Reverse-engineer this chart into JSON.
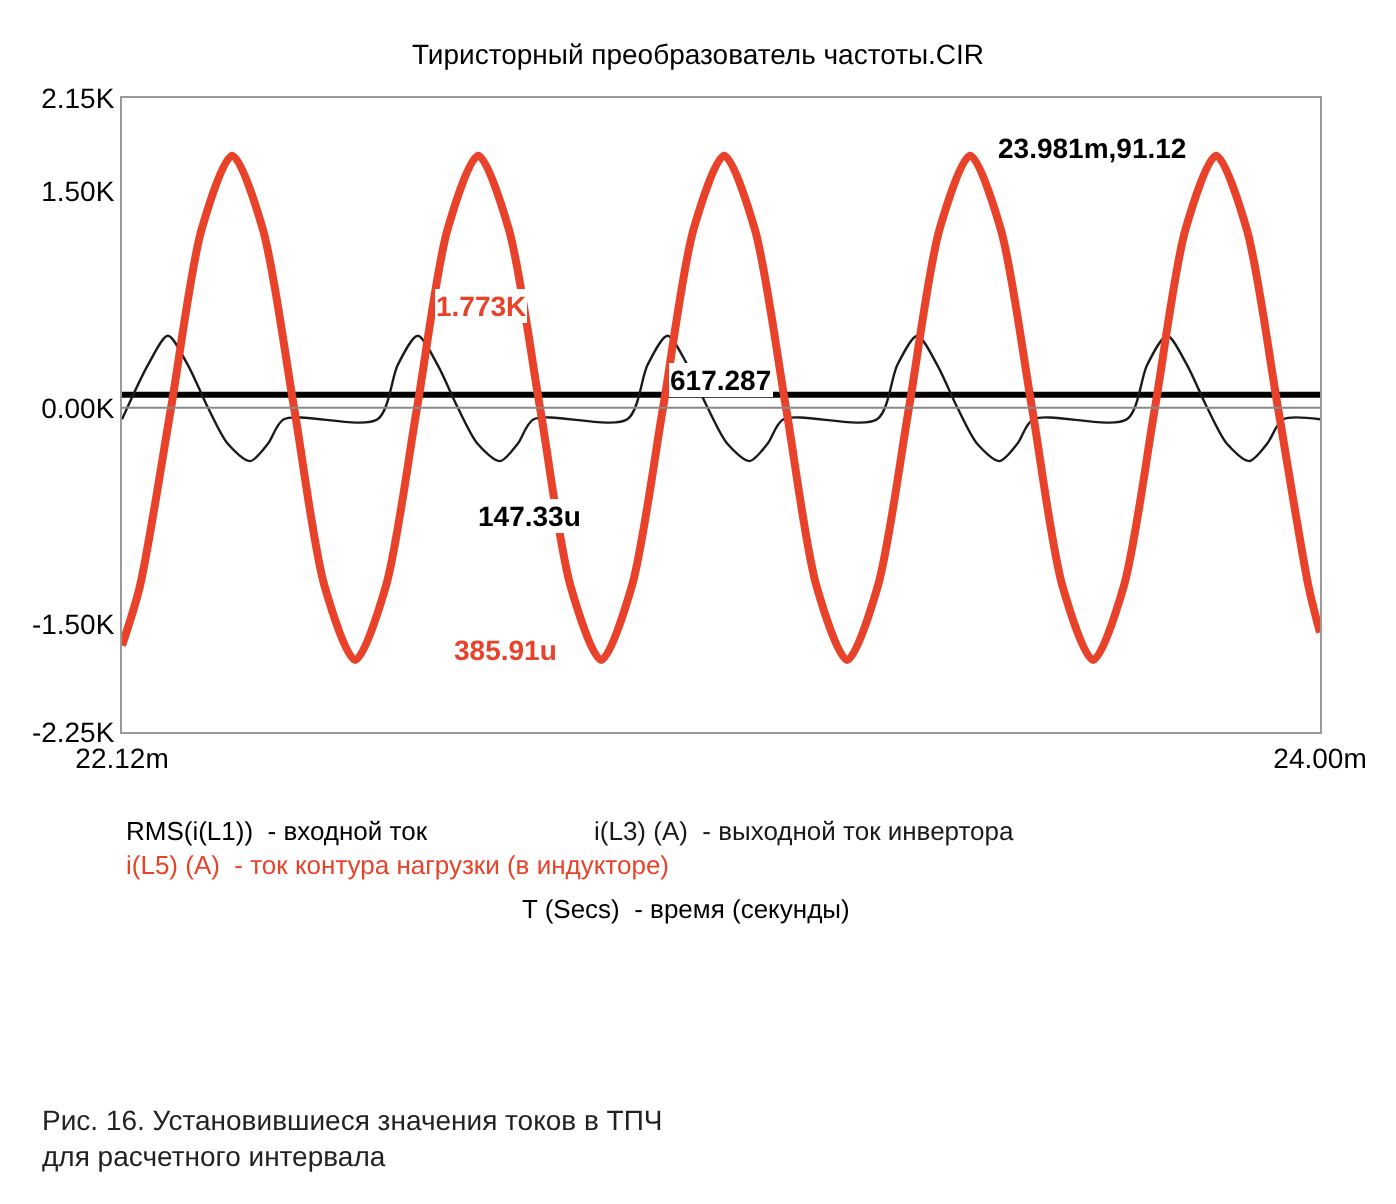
{
  "chart_data": {
    "type": "line",
    "title": "Тиристорный преобразователь частоты.CIR",
    "xlabel": "T (Secs)  - время (секунды)",
    "xlim": [
      22.12,
      24.0
    ],
    "xticks": [
      {
        "value": 22.12,
        "label": "22.12m"
      },
      {
        "value": 24.0,
        "label": "24.00m"
      }
    ],
    "ylim": [
      -2250,
      2150
    ],
    "yticks": [
      {
        "value": -2250,
        "label": "-2.25K"
      },
      {
        "value": -1500,
        "label": "-1.50K"
      },
      {
        "value": 0,
        "label": "0.00K"
      },
      {
        "value": 1500,
        "label": "1.50K"
      },
      {
        "value": 2150,
        "label": "2.15K"
      }
    ],
    "series": [
      {
        "name": "RMS(i(L1))  - входной ток",
        "color": "#000000",
        "x": [
          22.12,
          24.0
        ],
        "values": [
          90,
          90
        ]
      },
      {
        "name": "i(L3) (A)  - выходной ток инвертора",
        "color": "#1a1a1a",
        "x": [
          22.12,
          22.161,
          22.192,
          22.223,
          22.255,
          22.286,
          22.321,
          22.349,
          22.374,
          22.521,
          22.553,
          22.584,
          22.615,
          22.647,
          22.678,
          22.713,
          22.741,
          22.766,
          22.913,
          22.945,
          22.976,
          23.007,
          23.039,
          23.07,
          23.105,
          23.133,
          23.158,
          23.305,
          23.337,
          23.368,
          23.399,
          23.431,
          23.462,
          23.497,
          23.525,
          23.55,
          23.697,
          23.729,
          23.76,
          23.791,
          23.823,
          23.854,
          23.889,
          23.917,
          23.942,
          24.0
        ],
        "values": [
          -80,
          300,
          500,
          300,
          0,
          -250,
          -370,
          -250,
          -80,
          -80,
          300,
          500,
          300,
          0,
          -250,
          -370,
          -250,
          -80,
          -80,
          300,
          500,
          300,
          0,
          -250,
          -370,
          -250,
          -80,
          -80,
          300,
          500,
          300,
          0,
          -250,
          -370,
          -250,
          -80,
          -80,
          300,
          500,
          300,
          0,
          -250,
          -370,
          -250,
          -80,
          -80
        ]
      },
      {
        "name": "i(L5) (A)  - ток контура нагрузки (в индукторе)",
        "color": "#e8432a",
        "x": [
          22.12,
          22.148,
          22.197,
          22.245,
          22.293,
          22.341,
          22.39,
          22.438,
          22.486,
          22.534,
          22.583,
          22.631,
          22.679,
          22.727,
          22.776,
          22.824,
          22.872,
          22.92,
          22.969,
          23.017,
          23.065,
          23.113,
          23.162,
          23.21,
          23.258,
          23.306,
          23.355,
          23.403,
          23.451,
          23.499,
          23.548,
          23.596,
          23.644,
          23.692,
          23.741,
          23.789,
          23.837,
          23.885,
          23.934,
          23.982,
          24.0
        ],
        "values": [
          -1650,
          -1240,
          0,
          1240,
          1750,
          1240,
          0,
          -1240,
          -1750,
          -1240,
          0,
          1240,
          1750,
          1240,
          0,
          -1240,
          -1750,
          -1240,
          0,
          1240,
          1750,
          1240,
          0,
          -1240,
          -1750,
          -1240,
          0,
          1240,
          1750,
          1240,
          0,
          -1240,
          -1750,
          -1240,
          0,
          1240,
          1750,
          1240,
          0,
          -1240,
          -1560
        ]
      }
    ],
    "ref_lines": [
      {
        "axis": "y",
        "value": 0,
        "color": "#888888"
      }
    ],
    "annotations": [
      "1.773K",
      "617.287",
      "147.33u",
      "385.91u",
      "23.981m,91.12",
      "Рис. 16. Установившиеся значения токов в ТПЧ\nдля расчетного интервала"
    ],
    "legend": "bottom",
    "grid": false,
    "marker": "none",
    "line_style": "solid"
  }
}
